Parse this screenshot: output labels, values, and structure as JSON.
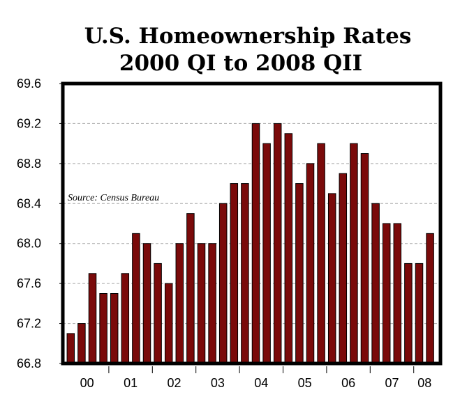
{
  "chart_data": {
    "type": "bar",
    "title": [
      "U.S. Homeownership Rates",
      "2000 QI to 2008 QII"
    ],
    "annotation": "Source: Census Bureau",
    "xlabel": "",
    "ylabel": "",
    "ylim": [
      66.8,
      69.6
    ],
    "yticks": [
      "66.8",
      "67.2",
      "67.6",
      "68.0",
      "68.4",
      "68.8",
      "69.2",
      "69.6"
    ],
    "xticks": [
      "00",
      "01",
      "02",
      "03",
      "04",
      "05",
      "06",
      "07",
      "08"
    ],
    "grid": "horizontal dashed",
    "bar_color": "#7a0a0a",
    "categories": [
      "2000 QI",
      "2000 QII",
      "2000 QIII",
      "2000 QIV",
      "2001 QI",
      "2001 QII",
      "2001 QIII",
      "2001 QIV",
      "2002 QI",
      "2002 QII",
      "2002 QIII",
      "2002 QIV",
      "2003 QI",
      "2003 QII",
      "2003 QIII",
      "2003 QIV",
      "2004 QI",
      "2004 QII",
      "2004 QIII",
      "2004 QIV",
      "2005 QI",
      "2005 QII",
      "2005 QIII",
      "2005 QIV",
      "2006 QI",
      "2006 QII",
      "2006 QIII",
      "2006 QIV",
      "2007 QI",
      "2007 QII",
      "2007 QIII",
      "2007 QIV",
      "2008 QI",
      "2008 QII"
    ],
    "values": [
      67.1,
      67.2,
      67.7,
      67.5,
      67.5,
      67.7,
      68.1,
      68.0,
      67.8,
      67.6,
      68.0,
      68.3,
      68.0,
      68.0,
      68.4,
      68.6,
      68.6,
      69.2,
      69.0,
      69.2,
      69.1,
      68.6,
      68.8,
      69.0,
      68.5,
      68.7,
      69.0,
      68.9,
      68.4,
      68.2,
      68.2,
      67.8,
      67.8,
      68.1
    ]
  }
}
